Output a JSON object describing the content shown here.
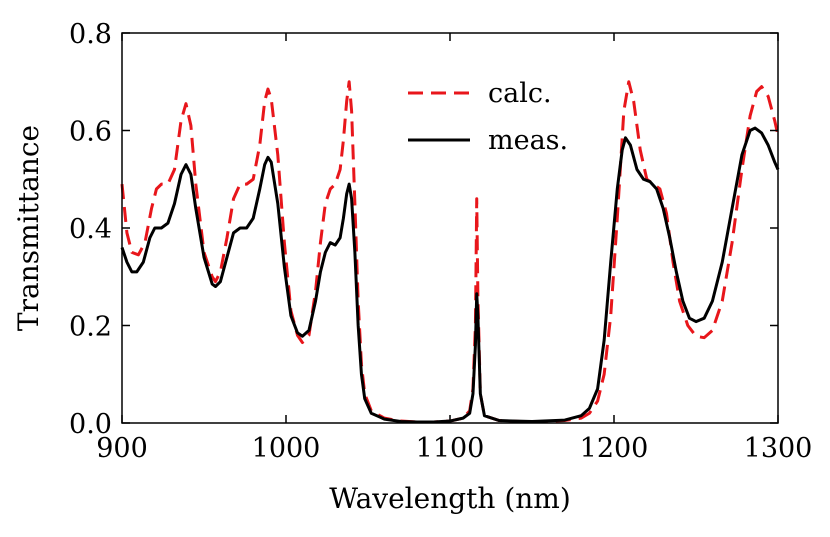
{
  "chart_data": {
    "type": "line",
    "xlabel": "Wavelength (nm)",
    "ylabel": "Transmittance",
    "xlim": [
      900,
      1300
    ],
    "ylim": [
      0.0,
      0.8
    ],
    "xticks": [
      900,
      1000,
      1100,
      1200,
      1300
    ],
    "xtick_labels": [
      "900",
      "1000",
      "1100",
      "1200",
      "1300"
    ],
    "yticks": [
      0.0,
      0.2,
      0.4,
      0.6,
      0.8
    ],
    "ytick_labels": [
      "0.0",
      "0.2",
      "0.4",
      "0.6",
      "0.8"
    ],
    "legend_position": "top-center",
    "series": [
      {
        "name": "calc.",
        "color": "#e8161b",
        "style": "dashed",
        "points": [
          [
            900,
            0.49
          ],
          [
            903,
            0.39
          ],
          [
            906,
            0.35
          ],
          [
            910,
            0.345
          ],
          [
            914,
            0.37
          ],
          [
            918,
            0.44
          ],
          [
            921,
            0.48
          ],
          [
            924,
            0.49
          ],
          [
            928,
            0.49
          ],
          [
            932,
            0.52
          ],
          [
            936,
            0.62
          ],
          [
            939,
            0.655
          ],
          [
            942,
            0.61
          ],
          [
            945,
            0.49
          ],
          [
            950,
            0.35
          ],
          [
            955,
            0.3
          ],
          [
            957,
            0.29
          ],
          [
            960,
            0.31
          ],
          [
            964,
            0.38
          ],
          [
            968,
            0.46
          ],
          [
            972,
            0.49
          ],
          [
            976,
            0.49
          ],
          [
            980,
            0.5
          ],
          [
            984,
            0.57
          ],
          [
            987,
            0.66
          ],
          [
            989,
            0.685
          ],
          [
            991,
            0.665
          ],
          [
            995,
            0.55
          ],
          [
            999,
            0.37
          ],
          [
            1003,
            0.23
          ],
          [
            1007,
            0.18
          ],
          [
            1010,
            0.165
          ],
          [
            1014,
            0.18
          ],
          [
            1018,
            0.27
          ],
          [
            1021,
            0.37
          ],
          [
            1024,
            0.45
          ],
          [
            1027,
            0.48
          ],
          [
            1030,
            0.49
          ],
          [
            1033,
            0.52
          ],
          [
            1035,
            0.58
          ],
          [
            1037,
            0.66
          ],
          [
            1038.5,
            0.7
          ],
          [
            1040,
            0.64
          ],
          [
            1042,
            0.45
          ],
          [
            1044,
            0.25
          ],
          [
            1046,
            0.12
          ],
          [
            1048,
            0.06
          ],
          [
            1052,
            0.025
          ],
          [
            1060,
            0.01
          ],
          [
            1070,
            0.004
          ],
          [
            1080,
            0.002
          ],
          [
            1090,
            0.002
          ],
          [
            1100,
            0.004
          ],
          [
            1108,
            0.01
          ],
          [
            1112,
            0.025
          ],
          [
            1114,
            0.07
          ],
          [
            1115.5,
            0.2
          ],
          [
            1116.3,
            0.46
          ],
          [
            1117,
            0.26
          ],
          [
            1118.5,
            0.06
          ],
          [
            1121,
            0.015
          ],
          [
            1130,
            0.005
          ],
          [
            1150,
            0.002
          ],
          [
            1170,
            0.005
          ],
          [
            1180,
            0.01
          ],
          [
            1185,
            0.02
          ],
          [
            1190,
            0.045
          ],
          [
            1194,
            0.1
          ],
          [
            1198,
            0.22
          ],
          [
            1202,
            0.42
          ],
          [
            1206,
            0.64
          ],
          [
            1209,
            0.7
          ],
          [
            1212,
            0.66
          ],
          [
            1216,
            0.56
          ],
          [
            1220,
            0.5
          ],
          [
            1224,
            0.49
          ],
          [
            1228,
            0.48
          ],
          [
            1232,
            0.43
          ],
          [
            1236,
            0.33
          ],
          [
            1240,
            0.25
          ],
          [
            1245,
            0.2
          ],
          [
            1250,
            0.178
          ],
          [
            1255,
            0.175
          ],
          [
            1260,
            0.19
          ],
          [
            1266,
            0.25
          ],
          [
            1272,
            0.37
          ],
          [
            1278,
            0.52
          ],
          [
            1283,
            0.63
          ],
          [
            1287,
            0.68
          ],
          [
            1290,
            0.69
          ],
          [
            1294,
            0.67
          ],
          [
            1298,
            0.62
          ],
          [
            1300,
            0.59
          ]
        ]
      },
      {
        "name": "meas.",
        "color": "#000000",
        "style": "solid",
        "points": [
          [
            900,
            0.36
          ],
          [
            903,
            0.33
          ],
          [
            906,
            0.31
          ],
          [
            909,
            0.31
          ],
          [
            913,
            0.33
          ],
          [
            917,
            0.38
          ],
          [
            920,
            0.4
          ],
          [
            924,
            0.4
          ],
          [
            928,
            0.41
          ],
          [
            932,
            0.45
          ],
          [
            936,
            0.51
          ],
          [
            939,
            0.53
          ],
          [
            942,
            0.51
          ],
          [
            945,
            0.44
          ],
          [
            950,
            0.34
          ],
          [
            955,
            0.285
          ],
          [
            957,
            0.28
          ],
          [
            960,
            0.29
          ],
          [
            964,
            0.34
          ],
          [
            968,
            0.39
          ],
          [
            972,
            0.4
          ],
          [
            976,
            0.4
          ],
          [
            980,
            0.42
          ],
          [
            984,
            0.48
          ],
          [
            987,
            0.53
          ],
          [
            989,
            0.545
          ],
          [
            991,
            0.535
          ],
          [
            995,
            0.45
          ],
          [
            999,
            0.32
          ],
          [
            1003,
            0.22
          ],
          [
            1007,
            0.185
          ],
          [
            1010,
            0.178
          ],
          [
            1014,
            0.19
          ],
          [
            1018,
            0.25
          ],
          [
            1021,
            0.31
          ],
          [
            1024,
            0.35
          ],
          [
            1027,
            0.37
          ],
          [
            1030,
            0.365
          ],
          [
            1033,
            0.38
          ],
          [
            1035,
            0.42
          ],
          [
            1037,
            0.47
          ],
          [
            1038.5,
            0.49
          ],
          [
            1040,
            0.46
          ],
          [
            1042,
            0.35
          ],
          [
            1044,
            0.2
          ],
          [
            1046,
            0.1
          ],
          [
            1048,
            0.05
          ],
          [
            1052,
            0.02
          ],
          [
            1060,
            0.008
          ],
          [
            1070,
            0.003
          ],
          [
            1080,
            0.002
          ],
          [
            1090,
            0.002
          ],
          [
            1100,
            0.004
          ],
          [
            1108,
            0.01
          ],
          [
            1112,
            0.02
          ],
          [
            1114,
            0.06
          ],
          [
            1115.5,
            0.16
          ],
          [
            1116.3,
            0.265
          ],
          [
            1117,
            0.22
          ],
          [
            1118.5,
            0.06
          ],
          [
            1121,
            0.015
          ],
          [
            1130,
            0.005
          ],
          [
            1150,
            0.003
          ],
          [
            1170,
            0.006
          ],
          [
            1180,
            0.015
          ],
          [
            1185,
            0.03
          ],
          [
            1190,
            0.07
          ],
          [
            1194,
            0.17
          ],
          [
            1198,
            0.33
          ],
          [
            1202,
            0.48
          ],
          [
            1205,
            0.56
          ],
          [
            1207,
            0.585
          ],
          [
            1210,
            0.57
          ],
          [
            1214,
            0.52
          ],
          [
            1218,
            0.5
          ],
          [
            1222,
            0.495
          ],
          [
            1226,
            0.48
          ],
          [
            1230,
            0.44
          ],
          [
            1234,
            0.38
          ],
          [
            1238,
            0.31
          ],
          [
            1242,
            0.25
          ],
          [
            1246,
            0.215
          ],
          [
            1250,
            0.208
          ],
          [
            1255,
            0.215
          ],
          [
            1260,
            0.25
          ],
          [
            1266,
            0.33
          ],
          [
            1272,
            0.44
          ],
          [
            1278,
            0.55
          ],
          [
            1283,
            0.6
          ],
          [
            1286,
            0.605
          ],
          [
            1290,
            0.595
          ],
          [
            1294,
            0.57
          ],
          [
            1298,
            0.535
          ],
          [
            1300,
            0.52
          ]
        ]
      }
    ]
  }
}
